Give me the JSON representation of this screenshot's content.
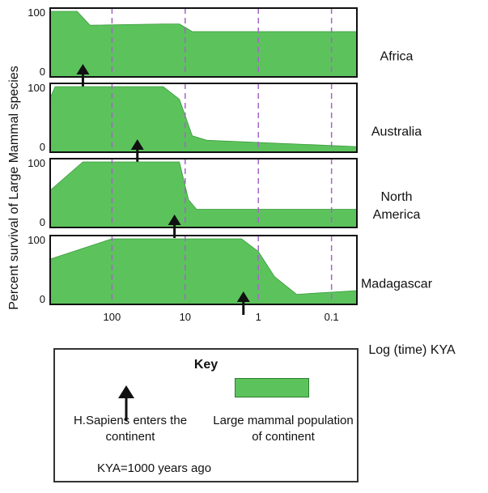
{
  "chart_data": {
    "type": "area",
    "ylabel": "Percent survival of Large Mammal species",
    "xlabel": "Log (time) KYA",
    "x_scale": "log-reversed",
    "xlim": [
      700,
      0.045
    ],
    "ylim": [
      0,
      100
    ],
    "x_ticks": [
      {
        "value": 100,
        "label": "100"
      },
      {
        "value": 10,
        "label": "10"
      },
      {
        "value": 1,
        "label": "1"
      },
      {
        "value": 0.1,
        "label": "0.1"
      }
    ],
    "y_ticks": [
      {
        "value": 0,
        "label": "0"
      },
      {
        "value": 100,
        "label": "100"
      }
    ],
    "grid": "vertical dashed lines at x ticks",
    "fill_color": "#5cc35c",
    "gridline_color": "#a466c8",
    "panels": [
      {
        "label": "Africa",
        "x": [
          700,
          300,
          200,
          20,
          12,
          8,
          0.045
        ],
        "y": [
          100,
          100,
          78,
          80,
          80,
          68,
          68
        ],
        "arrival_kya": 250
      },
      {
        "label": "Australia",
        "x": [
          700,
          600,
          20,
          12,
          8,
          5,
          0.045
        ],
        "y": [
          82,
          100,
          100,
          80,
          22,
          15,
          5
        ],
        "arrival_kya": 45
      },
      {
        "label": "North America",
        "x": [
          700,
          250,
          12,
          9,
          7,
          0.045
        ],
        "y": [
          55,
          100,
          100,
          40,
          25,
          25
        ],
        "arrival_kya": 14
      },
      {
        "label": "Madagascar",
        "x": [
          700,
          100,
          1.7,
          1,
          0.6,
          0.3,
          0.045
        ],
        "y": [
          68,
          100,
          100,
          80,
          40,
          12,
          18
        ],
        "arrival_kya": 1.6
      }
    ]
  },
  "key": {
    "title": "Key",
    "arrow_label": "H.Sapiens enters the continent",
    "population_label": "Large mammal population of continent",
    "note": "KYA=1000 years ago"
  }
}
